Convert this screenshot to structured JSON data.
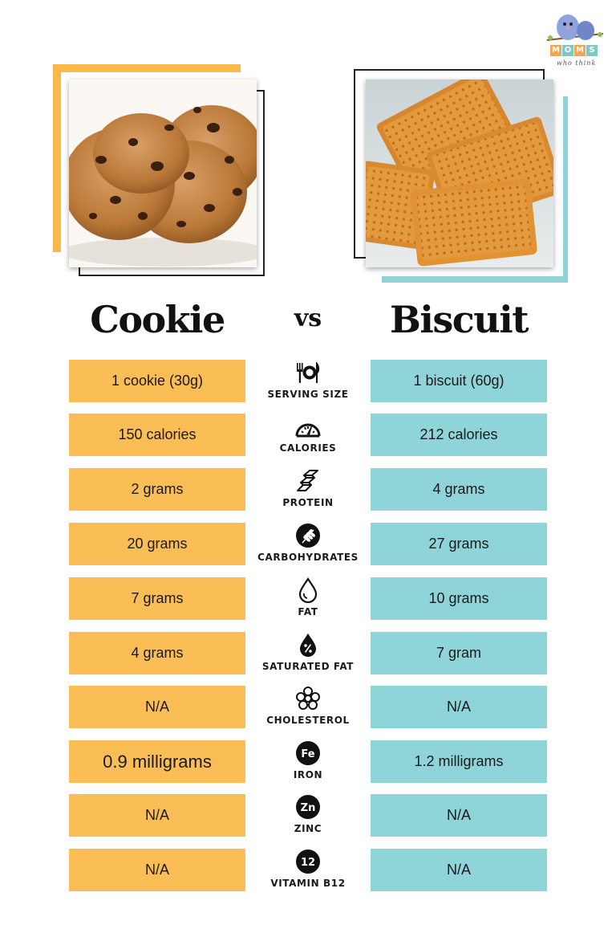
{
  "logo": {
    "letters": [
      "M",
      "O",
      "M",
      "S"
    ],
    "subtitle": "who think",
    "letter_colors": [
      "#f4a64a",
      "#7fc7c9",
      "#f4a64a",
      "#7fc7c9"
    ]
  },
  "left": {
    "title": "Cookie",
    "color": "#fbbd55"
  },
  "right": {
    "title": "Biscuit",
    "color": "#8fd4d8"
  },
  "vs": "vs",
  "rows": [
    {
      "label": "SERVING SIZE",
      "icon": "fork-plate-knife-icon",
      "left": "1 cookie (30g)",
      "right": "1 biscuit (60g)"
    },
    {
      "label": "CALORIES",
      "icon": "gauge-icon",
      "left": "150 calories",
      "right": "212 calories"
    },
    {
      "label": "PROTEIN",
      "icon": "protein-strand-icon",
      "left": "2 grams",
      "right": "4 grams"
    },
    {
      "label": "CARBOHYDRATES",
      "icon": "wheat-icon",
      "left": "20 grams",
      "right": "27 grams"
    },
    {
      "label": "FAT",
      "icon": "drop-icon",
      "left": "7 grams",
      "right": "10 grams"
    },
    {
      "label": "SATURATED FAT",
      "icon": "percent-drop-icon",
      "left": "4 grams",
      "right": "7 gram"
    },
    {
      "label": "CHOLESTEROL",
      "icon": "molecule-icon",
      "left": "N/A",
      "right": "N/A"
    },
    {
      "label": "IRON",
      "icon": "fe-badge-icon",
      "badge": "Fe",
      "left": "0.9 milligrams",
      "right": "1.2 milligrams"
    },
    {
      "label": "ZINC",
      "icon": "zn-badge-icon",
      "badge": "Zn",
      "left": "N/A",
      "right": "N/A"
    },
    {
      "label": "VITAMIN B12",
      "icon": "b12-badge-icon",
      "badge": "12",
      "left": "N/A",
      "right": "N/A"
    }
  ]
}
